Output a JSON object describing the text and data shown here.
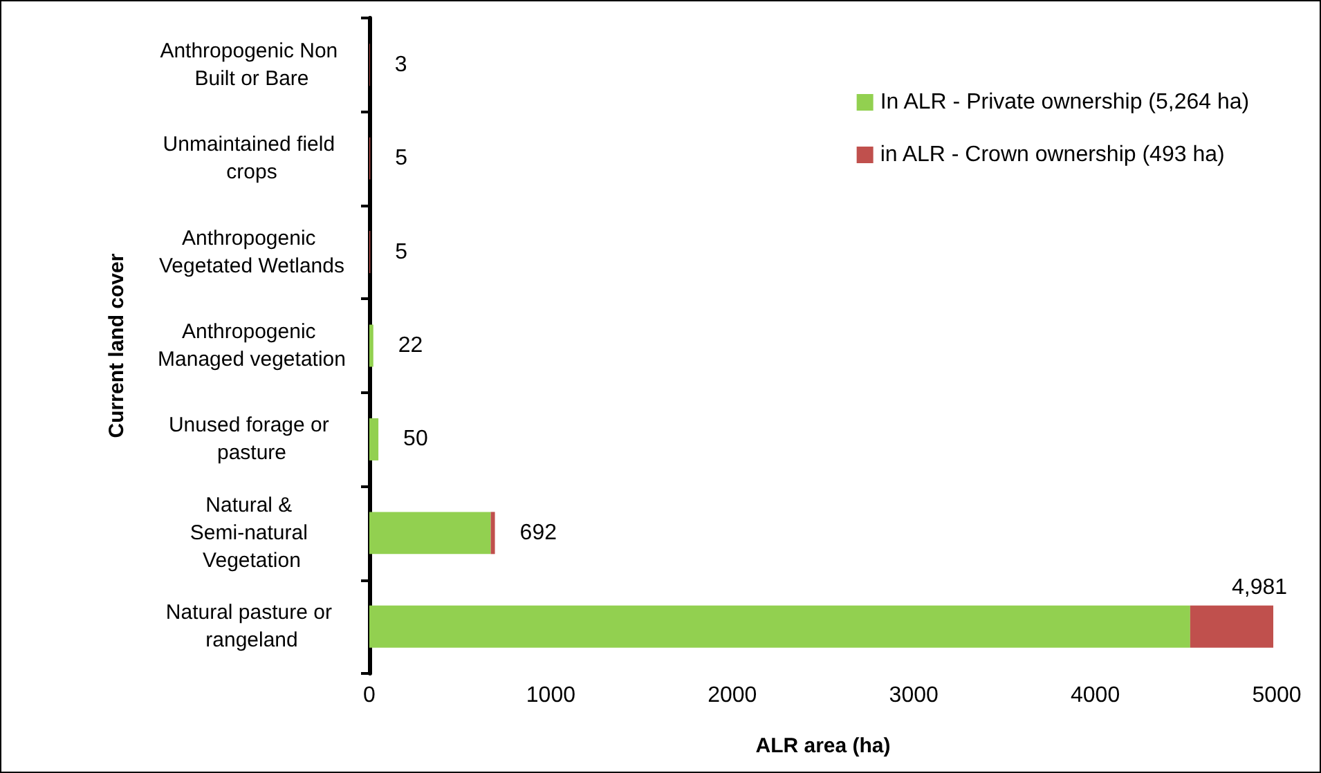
{
  "chart_data": {
    "type": "bar",
    "orientation": "horizontal",
    "stacked": true,
    "xlabel": "ALR area (ha)",
    "ylabel": "Current land cover",
    "categories": [
      "Anthropogenic Non Built or Bare",
      "Unmaintained field crops",
      "Anthropogenic Vegetated Wetlands",
      "Anthropogenic Managed vegetation",
      "Unused forage or pasture",
      "Natural & Semi-natural Vegetation",
      "Natural pasture or rangeland"
    ],
    "series": [
      {
        "name": "In ALR - Private ownership (5,264 ha)",
        "color": "#92d050",
        "values": [
          0,
          0,
          0,
          22,
          50,
          669,
          4523
        ]
      },
      {
        "name": "in ALR - Crown ownership (493 ha)",
        "color": "#c0504d",
        "values": [
          3,
          5,
          5,
          0,
          0,
          23,
          458
        ]
      }
    ],
    "totals": [
      "3",
      "5",
      "5",
      "22",
      "50",
      "692",
      "4,981"
    ],
    "xlim": [
      0,
      5000
    ],
    "xticks": [
      0,
      1000,
      2000,
      3000,
      4000,
      5000
    ],
    "grid": false,
    "legend": "top right"
  }
}
